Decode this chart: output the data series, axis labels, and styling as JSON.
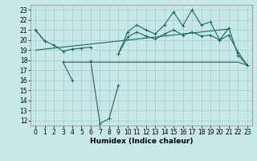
{
  "x": [
    0,
    1,
    2,
    3,
    4,
    5,
    6,
    7,
    8,
    9,
    10,
    11,
    12,
    13,
    14,
    15,
    16,
    17,
    18,
    19,
    20,
    21,
    22,
    23
  ],
  "y1": [
    21.0,
    19.9,
    null,
    null,
    null,
    null,
    null,
    null,
    null,
    18.6,
    20.8,
    21.5,
    21.0,
    20.6,
    21.5,
    22.8,
    21.4,
    23.0,
    21.5,
    21.8,
    20.0,
    21.2,
    18.5,
    17.5
  ],
  "y2": [
    21.0,
    19.9,
    19.5,
    18.9,
    19.1,
    19.2,
    19.3,
    null,
    null,
    18.6,
    20.3,
    20.8,
    20.4,
    20.1,
    20.6,
    21.0,
    20.5,
    20.8,
    20.4,
    20.5,
    20.0,
    20.5,
    18.8,
    17.5
  ],
  "y3": [
    19.0,
    19.1,
    19.2,
    19.3,
    19.4,
    19.5,
    19.6,
    19.7,
    19.8,
    19.9,
    20.0,
    20.1,
    20.2,
    20.3,
    20.4,
    20.5,
    20.6,
    20.7,
    20.8,
    20.9,
    21.0,
    21.1,
    null,
    null
  ],
  "y4": [
    null,
    null,
    null,
    17.8,
    17.8,
    17.8,
    17.8,
    17.8,
    17.8,
    17.8,
    17.8,
    17.8,
    17.8,
    17.8,
    17.8,
    17.8,
    17.8,
    17.8,
    17.8,
    17.8,
    17.8,
    17.8,
    17.8,
    17.5
  ],
  "y5": [
    null,
    null,
    null,
    17.8,
    16.0,
    null,
    17.9,
    11.7,
    12.2,
    15.5,
    null,
    null,
    null,
    null,
    null,
    null,
    null,
    null,
    null,
    null,
    null,
    null,
    null,
    null
  ],
  "bg_color": "#c8e8e8",
  "grid_color": "#a0cccc",
  "line_color": "#1a6666",
  "ylabel_values": [
    12,
    13,
    14,
    15,
    16,
    17,
    18,
    19,
    20,
    21,
    22,
    23
  ],
  "xlabel": "Humidex (Indice chaleur)",
  "xlim": [
    -0.5,
    23.5
  ],
  "ylim": [
    11.5,
    23.5
  ],
  "tick_fontsize": 5.5,
  "xlabel_fontsize": 6.5
}
